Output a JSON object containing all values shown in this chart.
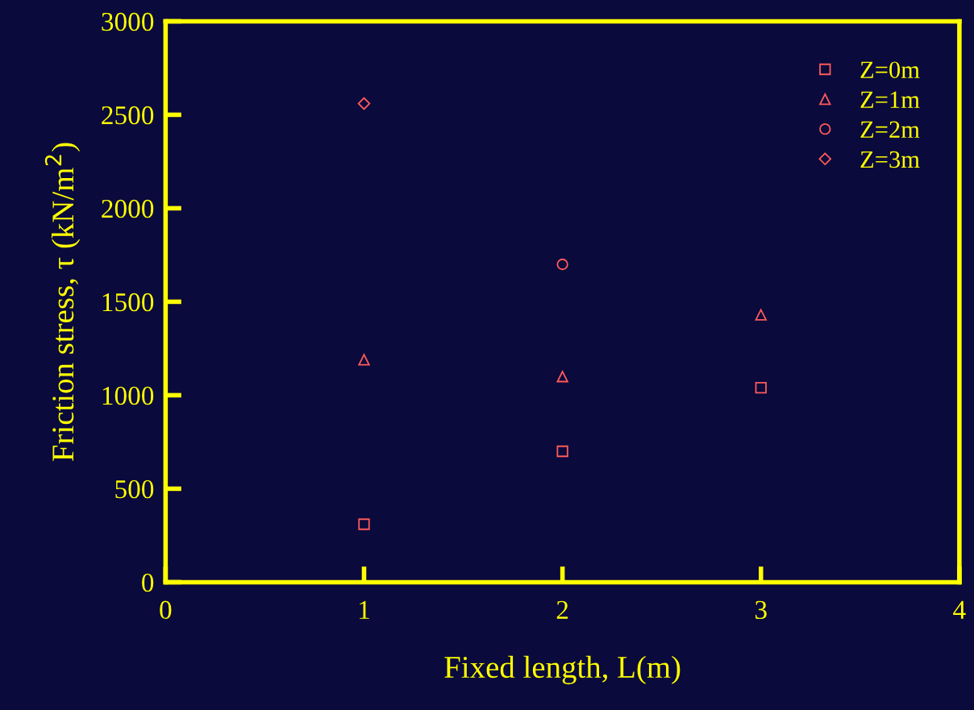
{
  "chart_data": {
    "type": "scatter",
    "xlabel": "Fixed length, L(m)",
    "ylabel": "Friction stress, τ (kN/m$^{2}$)",
    "xlim": [
      0,
      4
    ],
    "xticks": [
      0,
      1,
      2,
      3,
      4
    ],
    "ylim": [
      0,
      3000
    ],
    "yticks": [
      0,
      500,
      1000,
      1500,
      2000,
      2500,
      3000
    ],
    "grid": false,
    "legend": "top right",
    "series": [
      {
        "name": "Z=0m",
        "color": "#ff5a5a",
        "marker": "square",
        "x": [
          1,
          2,
          3
        ],
        "values": [
          310,
          700,
          1040
        ]
      },
      {
        "name": "Z=1m",
        "color": "#ff5a5a",
        "marker": "triangle",
        "x": [
          1,
          2,
          3
        ],
        "values": [
          1190,
          1100,
          1430
        ]
      },
      {
        "name": "Z=2m",
        "color": "#ff5a5a",
        "marker": "circle",
        "x": [
          2
        ],
        "values": [
          1700
        ]
      },
      {
        "name": "Z=3m",
        "color": "#ff5a5a",
        "marker": "diamond",
        "x": [
          1
        ],
        "values": [
          2560
        ]
      }
    ]
  }
}
